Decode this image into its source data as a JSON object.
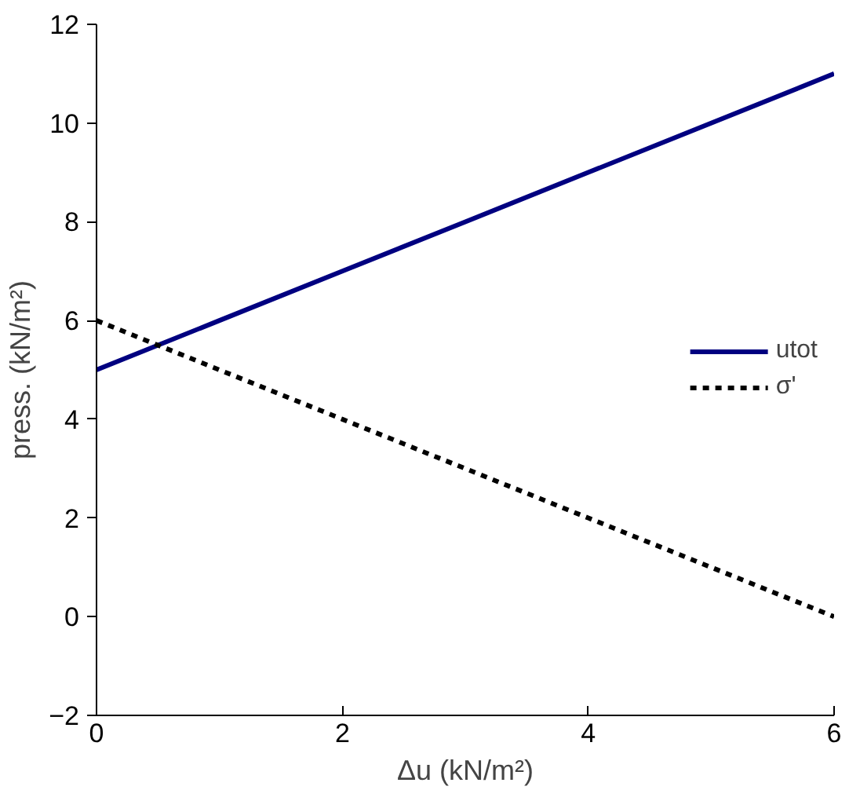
{
  "chart_data": {
    "type": "line",
    "xlabel": "Δu (kN/m²)",
    "ylabel": "press. (kN/m²)",
    "x": [
      0,
      1,
      2,
      3,
      4,
      5,
      6
    ],
    "series": [
      {
        "name": "utot",
        "color": "#000080",
        "values": [
          5,
          6,
          7,
          8,
          9,
          10,
          11
        ],
        "line_style": "solid"
      },
      {
        "name": "σ'",
        "color": "#000000",
        "values": [
          6,
          5,
          4,
          3,
          2,
          1,
          0
        ],
        "line_style": "dotted"
      }
    ],
    "xlim": [
      0,
      6
    ],
    "ylim": [
      -2,
      12
    ],
    "xticks": [
      0,
      2,
      4,
      6
    ],
    "yticks": [
      -2,
      0,
      2,
      4,
      6,
      8,
      10,
      12
    ],
    "grid": false,
    "legend": "right",
    "marker": "none"
  }
}
